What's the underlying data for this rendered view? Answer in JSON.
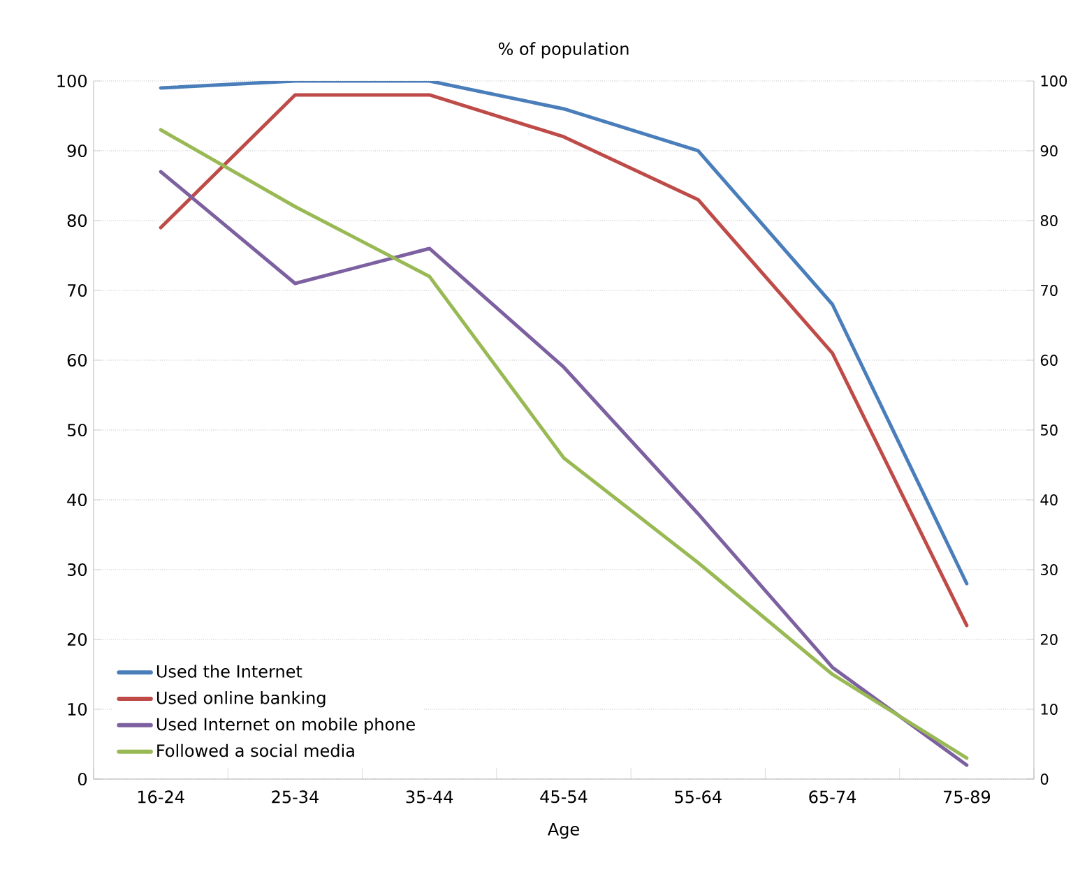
{
  "chart_data": {
    "type": "line",
    "title": "% of population",
    "xlabel": "Age",
    "categories": [
      "16-24",
      "25-34",
      "35-44",
      "45-54",
      "55-64",
      "65-74",
      "75-89"
    ],
    "series": [
      {
        "name": "Used the Internet",
        "color": "#4a7ebb",
        "values": [
          99,
          100,
          100,
          96,
          90,
          68,
          28
        ]
      },
      {
        "name": "Used online banking",
        "color": "#be4b48",
        "values": [
          79,
          98,
          98,
          92,
          83,
          61,
          22
        ]
      },
      {
        "name": "Used Internet on mobile phone",
        "color": "#7d60a0",
        "values": [
          87,
          71,
          76,
          59,
          38,
          16,
          2
        ]
      },
      {
        "name": "Followed a social media",
        "color": "#98b954",
        "values": [
          93,
          82,
          72,
          46,
          31,
          15,
          3
        ]
      }
    ],
    "ylim": [
      0,
      100
    ],
    "yticks": [
      0,
      10,
      20,
      30,
      40,
      50,
      60,
      70,
      80,
      90,
      100
    ],
    "y2lim": [
      0,
      100
    ],
    "y2ticks": [
      0,
      10,
      20,
      30,
      40,
      50,
      60,
      70,
      80,
      90,
      100
    ],
    "grid": "y",
    "legend": "bottom left",
    "marker": "none",
    "line_style": "solid"
  }
}
